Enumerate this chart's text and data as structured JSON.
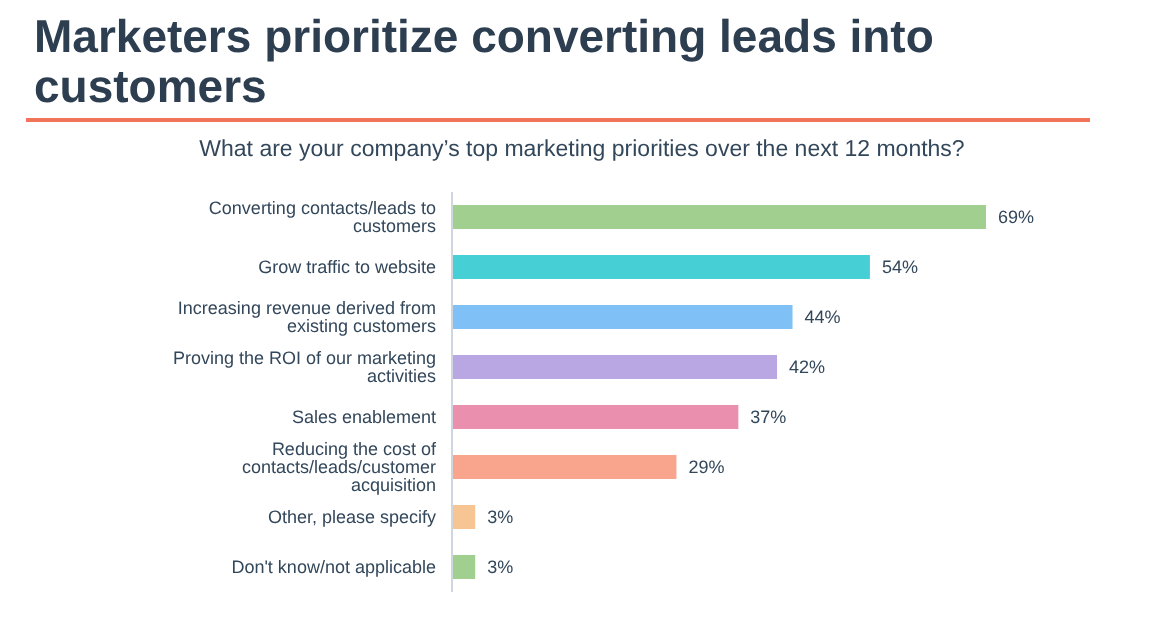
{
  "chart_data": {
    "type": "bar",
    "orientation": "horizontal",
    "title": "Marketers prioritize converting leads into customers",
    "subtitle": "What are your company’s top marketing priorities over the next 12 months?",
    "categories": [
      "Converting contacts/leads to customers",
      "Grow traffic to website",
      "Increasing revenue derived from existing customers",
      "Proving the ROI of our marketing activities",
      "Sales enablement",
      "Reducing the cost of contacts/leads/customer acquisition",
      "Other, please specify",
      "Don't know/not applicable"
    ],
    "values": [
      69,
      54,
      44,
      42,
      37,
      29,
      3,
      3
    ],
    "value_labels": [
      "69%",
      "54%",
      "44%",
      "42%",
      "37%",
      "29%",
      "3%",
      "3%"
    ],
    "colors": [
      "#a0cf8f",
      "#47cfd6",
      "#7fc1f7",
      "#b9a7e3",
      "#ea8fad",
      "#f9a58e",
      "#f7c593",
      "#a0cf8f"
    ],
    "grid": false,
    "legend": false
  }
}
